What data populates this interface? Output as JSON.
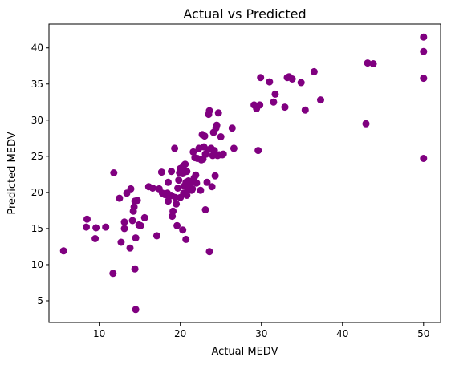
{
  "chart_data": {
    "type": "scatter",
    "title": "Actual vs Predicted",
    "xlabel": "Actual MEDV",
    "ylabel": "Predicted MEDV",
    "xlim": [
      3.8,
      52.1
    ],
    "ylim": [
      2.0,
      43.3
    ],
    "xticks": [
      10,
      20,
      30,
      40,
      50
    ],
    "yticks": [
      5,
      10,
      15,
      20,
      25,
      30,
      35,
      40
    ],
    "grid": false,
    "marker_color": "#800080",
    "series": [
      {
        "points": [
          [
            5.6,
            11.9
          ],
          [
            8.4,
            15.2
          ],
          [
            8.5,
            16.3
          ],
          [
            9.5,
            13.6
          ],
          [
            9.6,
            15.1
          ],
          [
            10.8,
            15.2
          ],
          [
            11.7,
            8.8
          ],
          [
            11.8,
            22.7
          ],
          [
            12.5,
            19.2
          ],
          [
            12.7,
            13.1
          ],
          [
            13.1,
            15.0
          ],
          [
            13.1,
            15.9
          ],
          [
            13.4,
            19.9
          ],
          [
            13.8,
            12.3
          ],
          [
            13.9,
            20.5
          ],
          [
            14.1,
            16.1
          ],
          [
            14.2,
            17.4
          ],
          [
            14.3,
            18.0
          ],
          [
            14.4,
            18.8
          ],
          [
            14.5,
            13.7
          ],
          [
            14.4,
            9.4
          ],
          [
            14.5,
            3.8
          ],
          [
            14.7,
            18.9
          ],
          [
            14.9,
            15.5
          ],
          [
            15.1,
            15.4
          ],
          [
            15.6,
            16.5
          ],
          [
            16.1,
            20.8
          ],
          [
            16.6,
            20.6
          ],
          [
            17.1,
            14.0
          ],
          [
            17.4,
            20.5
          ],
          [
            17.7,
            22.8
          ],
          [
            17.8,
            19.9
          ],
          [
            18.1,
            19.7
          ],
          [
            18.4,
            19.9
          ],
          [
            18.5,
            21.4
          ],
          [
            18.5,
            18.8
          ],
          [
            18.6,
            19.4
          ],
          [
            18.9,
            22.9
          ],
          [
            18.9,
            19.6
          ],
          [
            19.0,
            16.7
          ],
          [
            19.1,
            17.4
          ],
          [
            19.3,
            26.1
          ],
          [
            19.4,
            19.3
          ],
          [
            19.5,
            18.4
          ],
          [
            19.6,
            15.4
          ],
          [
            19.7,
            20.6
          ],
          [
            19.8,
            21.7
          ],
          [
            19.9,
            22.7
          ],
          [
            20.0,
            23.3
          ],
          [
            20.0,
            19.3
          ],
          [
            20.2,
            23.1
          ],
          [
            20.3,
            22.6
          ],
          [
            20.3,
            14.8
          ],
          [
            20.4,
            19.9
          ],
          [
            20.4,
            23.7
          ],
          [
            20.5,
            20.9
          ],
          [
            20.6,
            23.9
          ],
          [
            20.7,
            13.5
          ],
          [
            20.7,
            21.4
          ],
          [
            20.8,
            19.6
          ],
          [
            20.8,
            22.9
          ],
          [
            20.9,
            20.3
          ],
          [
            21.0,
            21.6
          ],
          [
            21.1,
            21.2
          ],
          [
            21.2,
            20.8
          ],
          [
            21.4,
            20.3
          ],
          [
            21.5,
            20.5
          ],
          [
            21.6,
            21.6
          ],
          [
            21.6,
            25.6
          ],
          [
            21.7,
            22.0
          ],
          [
            21.8,
            24.8
          ],
          [
            21.9,
            22.4
          ],
          [
            22.0,
            21.3
          ],
          [
            22.1,
            24.7
          ],
          [
            22.3,
            26.1
          ],
          [
            22.5,
            20.3
          ],
          [
            22.6,
            24.5
          ],
          [
            22.7,
            28.0
          ],
          [
            22.8,
            24.6
          ],
          [
            22.9,
            26.3
          ],
          [
            23.0,
            27.8
          ],
          [
            23.1,
            17.6
          ],
          [
            23.1,
            25.3
          ],
          [
            23.2,
            25.3
          ],
          [
            23.3,
            21.4
          ],
          [
            23.4,
            25.9
          ],
          [
            23.5,
            30.8
          ],
          [
            23.6,
            31.3
          ],
          [
            23.6,
            11.8
          ],
          [
            23.8,
            26.1
          ],
          [
            23.9,
            20.8
          ],
          [
            24.0,
            25.1
          ],
          [
            24.1,
            28.3
          ],
          [
            24.2,
            25.8
          ],
          [
            24.3,
            22.3
          ],
          [
            24.4,
            28.9
          ],
          [
            24.5,
            29.3
          ],
          [
            24.6,
            25.1
          ],
          [
            24.7,
            31.0
          ],
          [
            24.8,
            25.2
          ],
          [
            25.0,
            27.7
          ],
          [
            25.2,
            25.2
          ],
          [
            25.3,
            25.3
          ],
          [
            26.4,
            28.9
          ],
          [
            26.6,
            26.1
          ],
          [
            29.1,
            32.1
          ],
          [
            29.4,
            31.6
          ],
          [
            29.6,
            25.8
          ],
          [
            29.8,
            32.1
          ],
          [
            29.9,
            35.9
          ],
          [
            31.0,
            35.3
          ],
          [
            31.5,
            32.5
          ],
          [
            31.7,
            33.6
          ],
          [
            32.9,
            31.8
          ],
          [
            33.2,
            35.9
          ],
          [
            33.4,
            36.0
          ],
          [
            33.8,
            35.7
          ],
          [
            34.9,
            35.2
          ],
          [
            35.4,
            31.4
          ],
          [
            36.5,
            36.7
          ],
          [
            37.3,
            32.8
          ],
          [
            42.9,
            29.5
          ],
          [
            43.1,
            37.9
          ],
          [
            43.8,
            37.8
          ],
          [
            50.0,
            41.5
          ],
          [
            50.0,
            39.5
          ],
          [
            50.0,
            35.8
          ],
          [
            50.0,
            24.7
          ]
        ]
      }
    ]
  }
}
